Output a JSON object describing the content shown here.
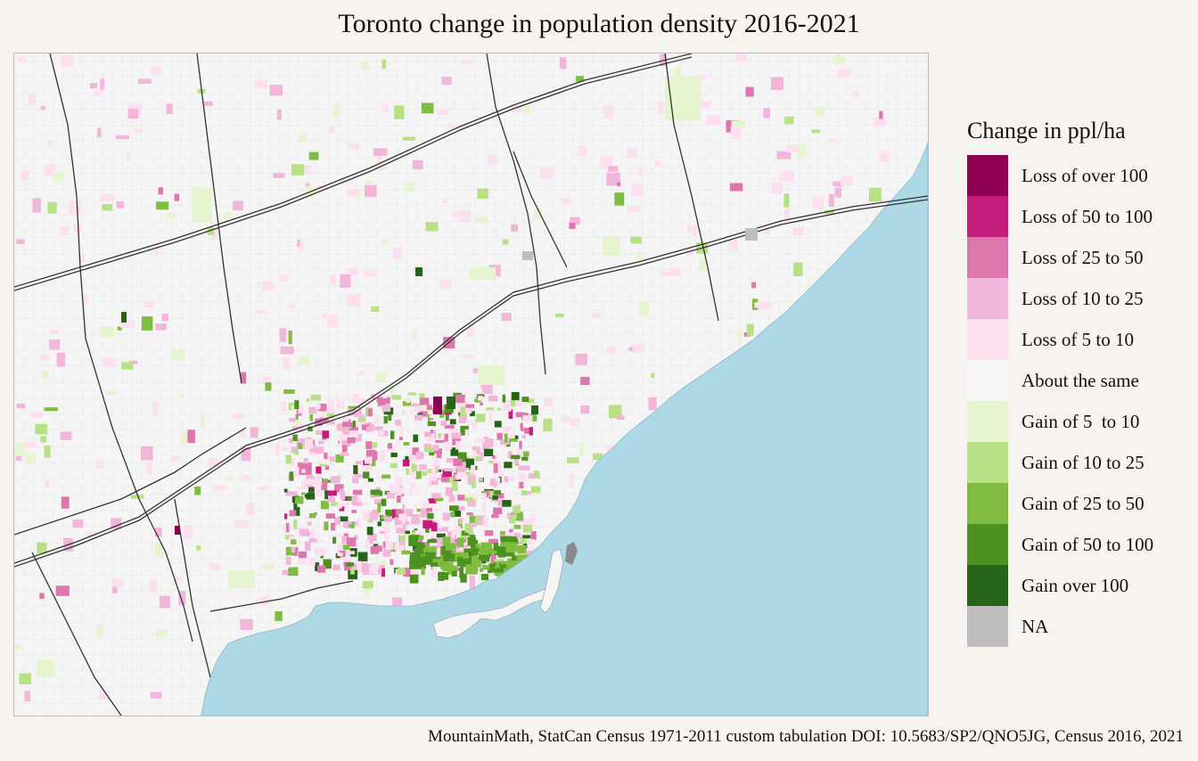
{
  "title": "Toronto change in population density 2016-2021",
  "legend": {
    "title": "Change in ppl/ha",
    "items": [
      {
        "label": "Loss of over 100",
        "color": "#8e0152"
      },
      {
        "label": "Loss of 50 to 100",
        "color": "#c51b7d"
      },
      {
        "label": "Loss of 25 to 50",
        "color": "#de77ae"
      },
      {
        "label": "Loss of 10 to 25",
        "color": "#f1b6da"
      },
      {
        "label": "Loss of 5 to 10",
        "color": "#fde0ef"
      },
      {
        "label": "About the same",
        "color": "#f7f7f7"
      },
      {
        "label": "Gain of 5  to 10",
        "color": "#e6f5d0"
      },
      {
        "label": "Gain of 10 to 25",
        "color": "#b8e186"
      },
      {
        "label": "Gain of 25 to 50",
        "color": "#7fbc41"
      },
      {
        "label": "Gain of 50 to 100",
        "color": "#4d9221"
      },
      {
        "label": "Gain over 100",
        "color": "#276419"
      },
      {
        "label": "NA",
        "color": "#bebebe"
      }
    ]
  },
  "map": {
    "water_color": "#add8e6",
    "land_color": "#f5f5f5",
    "road_color": "#333333"
  },
  "caption": "MountainMath, StatCan Census 1971-2011 custom tabulation DOI: 10.5683/SP2/QNO5JG, Census 2016, 2021"
}
